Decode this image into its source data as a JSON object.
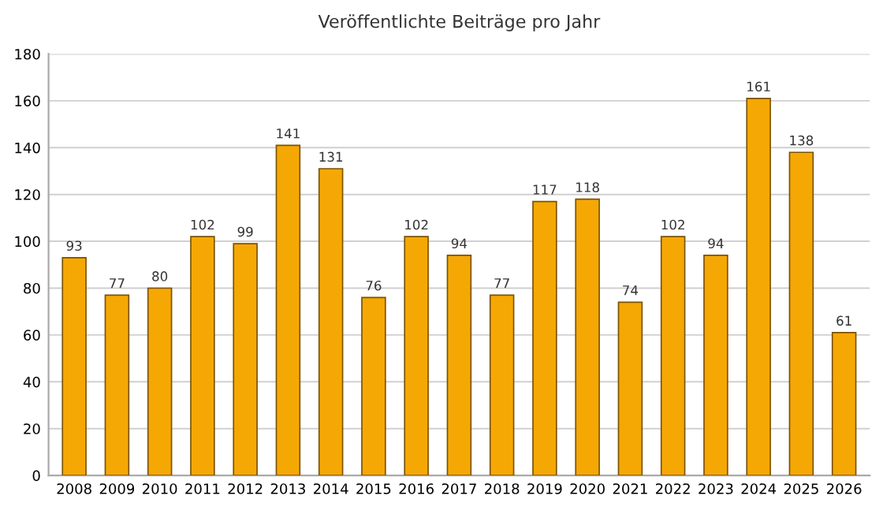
{
  "chart_data": {
    "type": "bar",
    "title": "Veröffentlichte Beiträge pro Jahr",
    "categories": [
      "2008",
      "2009",
      "2010",
      "2011",
      "2012",
      "2013",
      "2014",
      "2015",
      "2016",
      "2017",
      "2018",
      "2019",
      "2020",
      "2021",
      "2022",
      "2023",
      "2024",
      "2025",
      "2026"
    ],
    "values": [
      93,
      77,
      80,
      102,
      99,
      141,
      131,
      76,
      102,
      94,
      77,
      117,
      118,
      74,
      102,
      94,
      161,
      138,
      61
    ],
    "color": "#f5a804",
    "ylim": [
      0,
      180
    ],
    "yticks": [
      0,
      20,
      40,
      60,
      80,
      100,
      120,
      140,
      160,
      180
    ],
    "grid": "y",
    "data_labels": true
  }
}
